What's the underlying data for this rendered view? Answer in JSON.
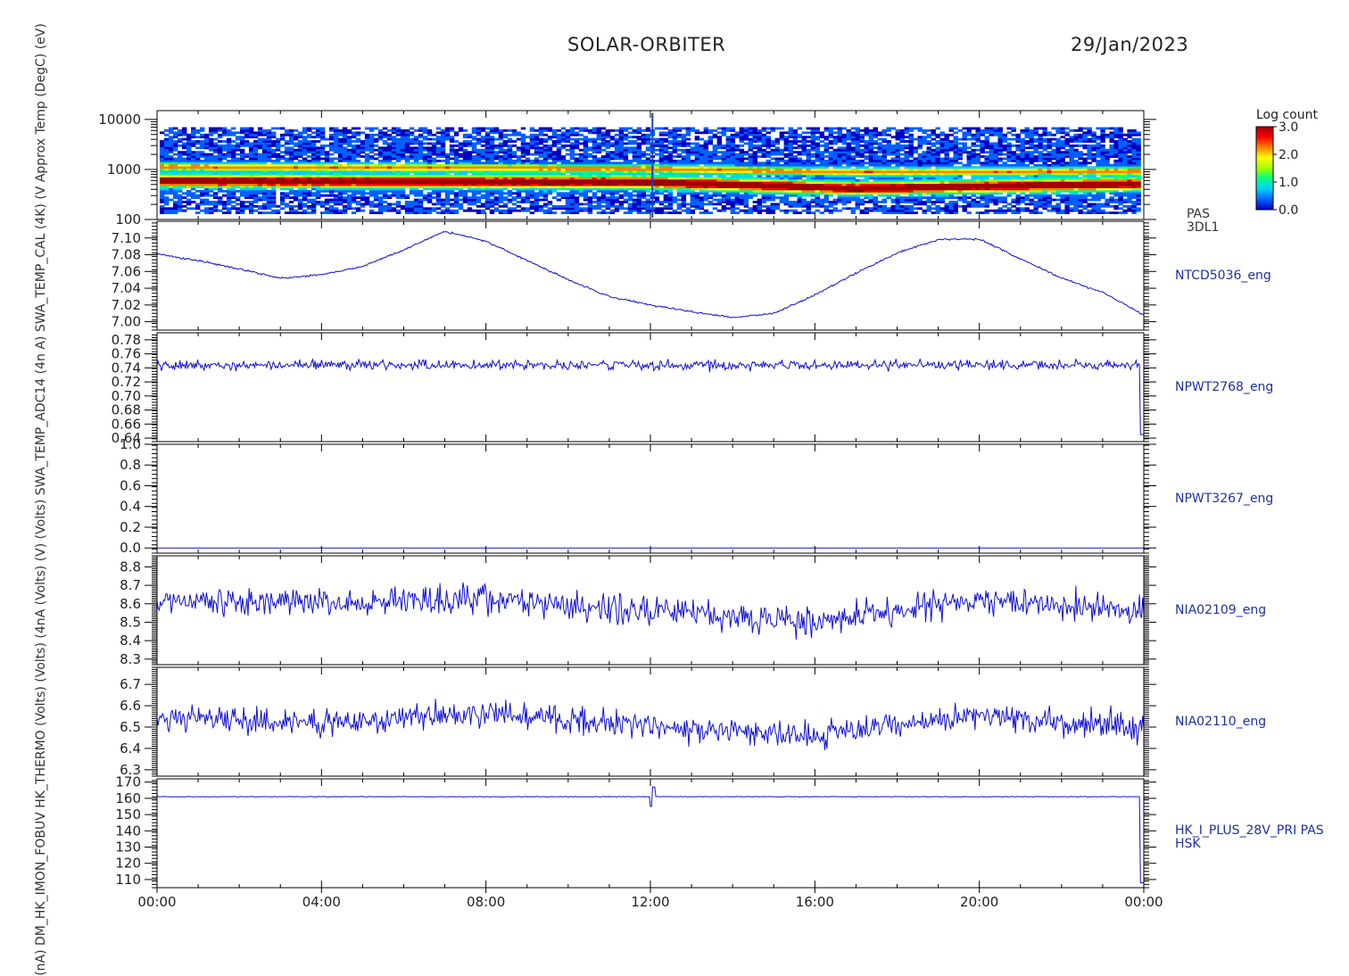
{
  "header": {
    "mission": "SOLAR-ORBITER",
    "date": "29/Jan/2023"
  },
  "colorbar": {
    "title": "Log count",
    "ticks": [
      "3.0",
      "2.0",
      "1.0",
      "0.0"
    ],
    "colors": [
      "#0000c0",
      "#0060ff",
      "#00d0ff",
      "#00ff80",
      "#a0ff00",
      "#ffff00",
      "#ff8000",
      "#ff0000",
      "#a00000"
    ]
  },
  "y_title_overlap": "(nA) DM_HK_IMON_FOBUV HK_THERMO (Volts) (Volts) (4nA (Volts) (V) (Volts) SWA_TEMP_ADC14 (4n A) SWA_TEMP_CAL (4K) (V Approx Temp (DegC) (eV)",
  "x_axis": {
    "ticks": [
      "00:00",
      "04:00",
      "08:00",
      "12:00",
      "16:00",
      "20:00",
      "00:00"
    ]
  },
  "chart_data": [
    {
      "type": "heatmap",
      "name": "PAS 3DL1",
      "label_lines": [
        "PAS",
        "3DL1"
      ],
      "ylabel": "(eV)",
      "y_log": true,
      "ylim": [
        100,
        15000
      ],
      "y_ticks": [
        "10000",
        "1000",
        "100"
      ],
      "y_tick_values": [
        10000,
        1000,
        100
      ],
      "x_hours": [
        0,
        24
      ],
      "band_energy_eV": [
        {
          "x": 0,
          "peak": 600,
          "second": 1150
        },
        {
          "x": 12,
          "peak": 560,
          "second": 1050
        },
        {
          "x": 17,
          "peak": 420,
          "second": 900
        },
        {
          "x": 24,
          "peak": 520,
          "second": 950
        }
      ],
      "spike_hour": 12.05
    },
    {
      "type": "line",
      "name": "NTCD5036_eng",
      "ylabel": "Approx Temp (DegC)",
      "ylim": [
        6.99,
        7.12
      ],
      "y_ticks": [
        "7.10",
        "7.08",
        "7.06",
        "7.04",
        "7.02",
        "7.00"
      ],
      "y_tick_values": [
        7.1,
        7.08,
        7.06,
        7.04,
        7.02,
        7.0
      ],
      "x": [
        0,
        1,
        2,
        3,
        4,
        5,
        6,
        7,
        8,
        9,
        10,
        11,
        12,
        13,
        14,
        15,
        16,
        17,
        18,
        19,
        20,
        21,
        22,
        23,
        24
      ],
      "y": [
        7.081,
        7.073,
        7.063,
        7.052,
        7.056,
        7.066,
        7.086,
        7.108,
        7.096,
        7.073,
        7.05,
        7.03,
        7.02,
        7.012,
        7.005,
        7.01,
        7.032,
        7.058,
        7.082,
        7.098,
        7.099,
        7.075,
        7.052,
        7.035,
        7.008
      ]
    },
    {
      "type": "line",
      "name": "NPWT2768_eng",
      "ylabel": "SWA_TEMP_CAL (4K)",
      "ylim": [
        0.635,
        0.79
      ],
      "y_ticks": [
        "0.78",
        "0.76",
        "0.74",
        "0.72",
        "0.70",
        "0.68",
        "0.66",
        "0.64"
      ],
      "y_tick_values": [
        0.78,
        0.76,
        0.74,
        0.72,
        0.7,
        0.68,
        0.66,
        0.64
      ],
      "x": [
        0,
        24
      ],
      "y_mean": 0.744,
      "y_noise": 0.012,
      "end_drop_value": 0.645
    },
    {
      "type": "line",
      "name": "NPWT3267_eng",
      "ylabel": "SWA_TEMP_ADC14 (4n A)",
      "ylim": [
        -0.05,
        1.0
      ],
      "y_ticks": [
        "1.0",
        "0.8",
        "0.6",
        "0.4",
        "0.2",
        "0.0"
      ],
      "y_tick_values": [
        1.0,
        0.8,
        0.6,
        0.4,
        0.2,
        0.0
      ],
      "x": [
        0,
        24
      ],
      "y_mean": 0.0
    },
    {
      "type": "line",
      "name": "NIA02109_eng",
      "ylabel": "HK_THERMO (Volts)",
      "ylim": [
        8.27,
        8.86
      ],
      "y_ticks": [
        "8.8",
        "8.7",
        "8.6",
        "8.5",
        "8.4",
        "8.3"
      ],
      "y_tick_values": [
        8.8,
        8.7,
        8.6,
        8.5,
        8.4,
        8.3
      ],
      "x": [
        0,
        4,
        8,
        12,
        16,
        20,
        24
      ],
      "y_levels": [
        8.62,
        8.6,
        8.62,
        8.56,
        8.5,
        8.62,
        8.56
      ],
      "y_noise": 0.12
    },
    {
      "type": "line",
      "name": "NIA02110_eng",
      "ylabel": "(Volts)",
      "ylim": [
        6.27,
        6.78
      ],
      "y_ticks": [
        "6.7",
        "6.6",
        "6.5",
        "6.4",
        "6.3"
      ],
      "y_tick_values": [
        6.7,
        6.6,
        6.5,
        6.4,
        6.3
      ],
      "x": [
        0,
        4,
        8,
        12,
        16,
        20,
        24
      ],
      "y_levels": [
        6.54,
        6.52,
        6.56,
        6.5,
        6.46,
        6.56,
        6.5
      ],
      "y_noise": 0.1
    },
    {
      "type": "line",
      "name": "HK_I_PLUS_28V_PRI PAS HSK",
      "label_lines": [
        "HK_I_PLUS_28V_PRI PAS",
        "HSK"
      ],
      "ylabel": "(nA) DM_HK_IMON_FOBUV",
      "ylim": [
        105,
        172
      ],
      "y_ticks": [
        "170",
        "160",
        "150",
        "140",
        "130",
        "120",
        "110"
      ],
      "y_tick_values": [
        170,
        160,
        150,
        140,
        130,
        120,
        110
      ],
      "x": [
        0,
        24
      ],
      "y_mean": 161,
      "spike_hour": 12.05,
      "end_drop_value": 108
    }
  ]
}
